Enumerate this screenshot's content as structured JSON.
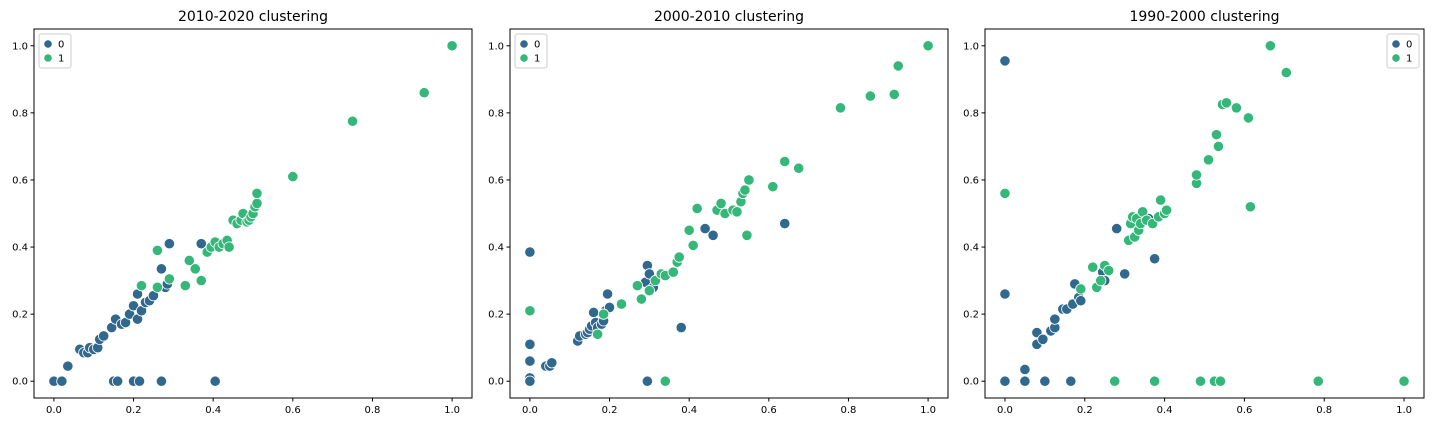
{
  "colors": {
    "cluster_0": "#31688e",
    "cluster_1": "#35b779"
  },
  "chart_data": [
    {
      "type": "scatter",
      "title": "2010-2020 clustering",
      "xlim": [
        -0.05,
        1.05
      ],
      "ylim": [
        -0.05,
        1.05
      ],
      "xticks": [
        "0.0",
        "0.2",
        "0.4",
        "0.6",
        "0.8",
        "1.0"
      ],
      "yticks": [
        "0.0",
        "0.2",
        "0.4",
        "0.6",
        "0.8",
        "1.0"
      ],
      "legend_position": "top-left",
      "series": [
        {
          "name": "0",
          "color": "#31688e",
          "points": [
            [
              0.0,
              0.0
            ],
            [
              0.02,
              0.0
            ],
            [
              0.035,
              0.045
            ],
            [
              0.065,
              0.095
            ],
            [
              0.075,
              0.085
            ],
            [
              0.085,
              0.085
            ],
            [
              0.09,
              0.1
            ],
            [
              0.1,
              0.095
            ],
            [
              0.11,
              0.1
            ],
            [
              0.115,
              0.125
            ],
            [
              0.125,
              0.135
            ],
            [
              0.145,
              0.16
            ],
            [
              0.155,
              0.185
            ],
            [
              0.17,
              0.17
            ],
            [
              0.18,
              0.175
            ],
            [
              0.19,
              0.2
            ],
            [
              0.2,
              0.225
            ],
            [
              0.21,
              0.185
            ],
            [
              0.21,
              0.26
            ],
            [
              0.22,
              0.21
            ],
            [
              0.23,
              0.235
            ],
            [
              0.24,
              0.24
            ],
            [
              0.25,
              0.255
            ],
            [
              0.27,
              0.335
            ],
            [
              0.28,
              0.28
            ],
            [
              0.285,
              0.29
            ],
            [
              0.29,
              0.41
            ],
            [
              0.37,
              0.41
            ],
            [
              0.15,
              0.0
            ],
            [
              0.16,
              0.0
            ],
            [
              0.2,
              0.0
            ],
            [
              0.215,
              0.0
            ],
            [
              0.27,
              0.0
            ],
            [
              0.405,
              0.0
            ]
          ]
        },
        {
          "name": "1",
          "color": "#35b779",
          "points": [
            [
              0.22,
              0.285
            ],
            [
              0.26,
              0.39
            ],
            [
              0.26,
              0.28
            ],
            [
              0.29,
              0.305
            ],
            [
              0.33,
              0.285
            ],
            [
              0.34,
              0.36
            ],
            [
              0.355,
              0.335
            ],
            [
              0.37,
              0.3
            ],
            [
              0.385,
              0.385
            ],
            [
              0.395,
              0.4
            ],
            [
              0.405,
              0.415
            ],
            [
              0.415,
              0.4
            ],
            [
              0.425,
              0.41
            ],
            [
              0.435,
              0.42
            ],
            [
              0.44,
              0.4
            ],
            [
              0.45,
              0.48
            ],
            [
              0.46,
              0.47
            ],
            [
              0.47,
              0.48
            ],
            [
              0.475,
              0.5
            ],
            [
              0.485,
              0.475
            ],
            [
              0.49,
              0.48
            ],
            [
              0.495,
              0.49
            ],
            [
              0.5,
              0.5
            ],
            [
              0.505,
              0.52
            ],
            [
              0.51,
              0.53
            ],
            [
              0.51,
              0.56
            ],
            [
              0.6,
              0.61
            ],
            [
              0.75,
              0.775
            ],
            [
              0.93,
              0.86
            ],
            [
              1.0,
              1.0
            ]
          ]
        }
      ]
    },
    {
      "type": "scatter",
      "title": "2000-2010 clustering",
      "xlim": [
        -0.05,
        1.05
      ],
      "ylim": [
        -0.05,
        1.05
      ],
      "xticks": [
        "0.0",
        "0.2",
        "0.4",
        "0.6",
        "0.8",
        "1.0"
      ],
      "yticks": [
        "0.0",
        "0.2",
        "0.4",
        "0.6",
        "0.8",
        "1.0"
      ],
      "legend_position": "top-left",
      "series": [
        {
          "name": "0",
          "color": "#31688e",
          "points": [
            [
              0.0,
              0.385
            ],
            [
              0.0,
              0.11
            ],
            [
              0.0,
              0.06
            ],
            [
              0.0,
              0.01
            ],
            [
              0.0,
              0.0
            ],
            [
              0.04,
              0.045
            ],
            [
              0.05,
              0.045
            ],
            [
              0.055,
              0.055
            ],
            [
              0.12,
              0.12
            ],
            [
              0.125,
              0.135
            ],
            [
              0.14,
              0.14
            ],
            [
              0.145,
              0.145
            ],
            [
              0.15,
              0.155
            ],
            [
              0.155,
              0.165
            ],
            [
              0.16,
              0.205
            ],
            [
              0.165,
              0.175
            ],
            [
              0.17,
              0.16
            ],
            [
              0.18,
              0.17
            ],
            [
              0.185,
              0.18
            ],
            [
              0.19,
              0.21
            ],
            [
              0.195,
              0.26
            ],
            [
              0.2,
              0.22
            ],
            [
              0.29,
              0.295
            ],
            [
              0.295,
              0.345
            ],
            [
              0.3,
              0.32
            ],
            [
              0.31,
              0.28
            ],
            [
              0.38,
              0.16
            ],
            [
              0.44,
              0.455
            ],
            [
              0.46,
              0.435
            ],
            [
              0.64,
              0.47
            ],
            [
              0.295,
              0.0
            ]
          ]
        },
        {
          "name": "1",
          "color": "#35b779",
          "points": [
            [
              0.0,
              0.21
            ],
            [
              0.17,
              0.14
            ],
            [
              0.185,
              0.2
            ],
            [
              0.23,
              0.23
            ],
            [
              0.27,
              0.285
            ],
            [
              0.28,
              0.245
            ],
            [
              0.3,
              0.27
            ],
            [
              0.315,
              0.3
            ],
            [
              0.33,
              0.32
            ],
            [
              0.34,
              0.315
            ],
            [
              0.36,
              0.325
            ],
            [
              0.37,
              0.355
            ],
            [
              0.375,
              0.37
            ],
            [
              0.4,
              0.45
            ],
            [
              0.41,
              0.405
            ],
            [
              0.42,
              0.515
            ],
            [
              0.47,
              0.51
            ],
            [
              0.48,
              0.53
            ],
            [
              0.49,
              0.5
            ],
            [
              0.51,
              0.51
            ],
            [
              0.52,
              0.505
            ],
            [
              0.53,
              0.535
            ],
            [
              0.535,
              0.56
            ],
            [
              0.54,
              0.57
            ],
            [
              0.545,
              0.435
            ],
            [
              0.55,
              0.6
            ],
            [
              0.61,
              0.58
            ],
            [
              0.64,
              0.655
            ],
            [
              0.675,
              0.635
            ],
            [
              0.78,
              0.815
            ],
            [
              0.855,
              0.85
            ],
            [
              0.915,
              0.855
            ],
            [
              0.925,
              0.94
            ],
            [
              1.0,
              1.0
            ],
            [
              0.34,
              0.0
            ]
          ]
        }
      ]
    },
    {
      "type": "scatter",
      "title": "1990-2000 clustering",
      "xlim": [
        -0.05,
        1.05
      ],
      "ylim": [
        -0.05,
        1.05
      ],
      "xticks": [
        "0.0",
        "0.2",
        "0.4",
        "0.6",
        "0.8",
        "1.0"
      ],
      "yticks": [
        "0.0",
        "0.2",
        "0.4",
        "0.6",
        "0.8",
        "1.0"
      ],
      "legend_position": "top-right",
      "series": [
        {
          "name": "0",
          "color": "#31688e",
          "points": [
            [
              0.0,
              0.955
            ],
            [
              0.0,
              0.26
            ],
            [
              0.0,
              0.0
            ],
            [
              0.05,
              0.0
            ],
            [
              0.05,
              0.035
            ],
            [
              0.08,
              0.11
            ],
            [
              0.08,
              0.145
            ],
            [
              0.095,
              0.125
            ],
            [
              0.1,
              0.0
            ],
            [
              0.115,
              0.15
            ],
            [
              0.125,
              0.16
            ],
            [
              0.125,
              0.185
            ],
            [
              0.145,
              0.215
            ],
            [
              0.155,
              0.215
            ],
            [
              0.165,
              0.0
            ],
            [
              0.17,
              0.23
            ],
            [
              0.175,
              0.29
            ],
            [
              0.185,
              0.25
            ],
            [
              0.19,
              0.24
            ],
            [
              0.245,
              0.325
            ],
            [
              0.25,
              0.3
            ],
            [
              0.28,
              0.455
            ],
            [
              0.3,
              0.32
            ],
            [
              0.36,
              0.485
            ],
            [
              0.375,
              0.365
            ]
          ]
        },
        {
          "name": "1",
          "color": "#35b779",
          "points": [
            [
              0.0,
              0.56
            ],
            [
              0.19,
              0.275
            ],
            [
              0.22,
              0.34
            ],
            [
              0.23,
              0.28
            ],
            [
              0.24,
              0.3
            ],
            [
              0.25,
              0.345
            ],
            [
              0.26,
              0.33
            ],
            [
              0.275,
              0.0
            ],
            [
              0.31,
              0.42
            ],
            [
              0.315,
              0.47
            ],
            [
              0.32,
              0.49
            ],
            [
              0.325,
              0.43
            ],
            [
              0.33,
              0.485
            ],
            [
              0.335,
              0.45
            ],
            [
              0.34,
              0.47
            ],
            [
              0.345,
              0.505
            ],
            [
              0.355,
              0.48
            ],
            [
              0.37,
              0.47
            ],
            [
              0.375,
              0.0
            ],
            [
              0.385,
              0.49
            ],
            [
              0.39,
              0.54
            ],
            [
              0.4,
              0.5
            ],
            [
              0.405,
              0.51
            ],
            [
              0.48,
              0.59
            ],
            [
              0.48,
              0.615
            ],
            [
              0.49,
              0.0
            ],
            [
              0.51,
              0.66
            ],
            [
              0.525,
              0.0
            ],
            [
              0.53,
              0.735
            ],
            [
              0.535,
              0.7
            ],
            [
              0.54,
              0.0
            ],
            [
              0.545,
              0.825
            ],
            [
              0.555,
              0.83
            ],
            [
              0.58,
              0.815
            ],
            [
              0.61,
              0.785
            ],
            [
              0.615,
              0.52
            ],
            [
              0.665,
              1.0
            ],
            [
              0.705,
              0.92
            ],
            [
              0.785,
              0.0
            ],
            [
              1.0,
              0.0
            ]
          ]
        }
      ]
    }
  ]
}
